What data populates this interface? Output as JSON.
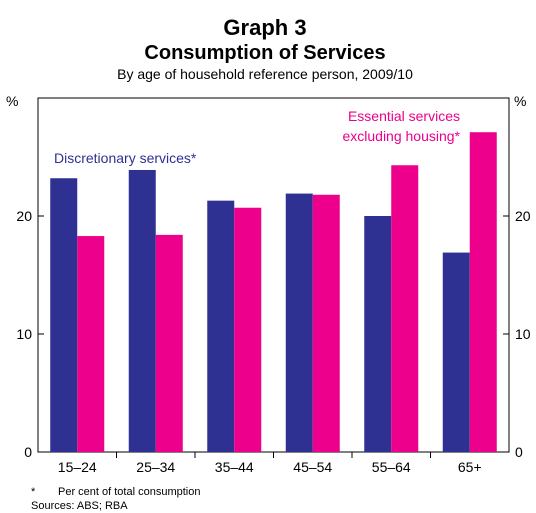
{
  "chart_data": {
    "type": "bar",
    "title": "Graph 3",
    "subtitle": "Consumption of Services",
    "caption": "By age of household reference person, 2009/10",
    "ylabel_left": "%",
    "ylabel_right": "%",
    "ylim": [
      0,
      30
    ],
    "yticks": [
      0,
      10,
      20
    ],
    "categories": [
      "15–24",
      "25–34",
      "35–44",
      "45–54",
      "55–64",
      "65+"
    ],
    "series": [
      {
        "name": "Discretionary services*",
        "color": "#2e3192",
        "values": [
          23.2,
          23.9,
          21.3,
          21.9,
          20.0,
          16.9
        ]
      },
      {
        "name": "Essential services excluding housing*",
        "legend_lines": [
          "Essential services",
          "excluding housing*"
        ],
        "color": "#ec008c",
        "values": [
          18.3,
          18.4,
          20.7,
          21.8,
          24.3,
          27.1
        ]
      }
    ],
    "legend_placement": "inside-top",
    "grid": false
  },
  "notes": {
    "footnote_marker": "*",
    "footnote_text": "Per cent of total consumption",
    "sources": "Sources: ABS; RBA"
  }
}
